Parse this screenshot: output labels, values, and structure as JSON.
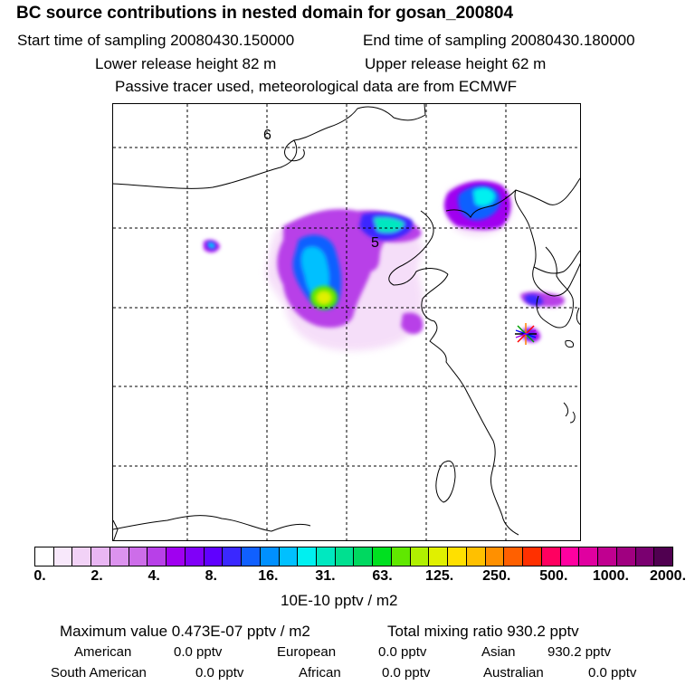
{
  "header": {
    "title": "BC  source contributions in nested domain for gosan_200804",
    "start_time": "Start time of sampling 20080430.150000",
    "end_time": "End time of sampling 20080430.180000",
    "lower_height": "Lower release height   82 m",
    "upper_height": "Upper release height   62 m",
    "tracer_note": "Passive tracer used, meteorological data are from ECMWF"
  },
  "map": {
    "grid_labels": [
      "6",
      "5"
    ],
    "receptor_marker": "star-marker"
  },
  "colorbar": {
    "colors": [
      "#ffffff",
      "#f8e8fb",
      "#f2d2f7",
      "#e9b6f3",
      "#dc93ee",
      "#cd6de9",
      "#b840e8",
      "#a000f0",
      "#8000f8",
      "#6000ff",
      "#3a28ff",
      "#1060ff",
      "#0090ff",
      "#00c0ff",
      "#00f0f0",
      "#00e8c0",
      "#00e090",
      "#00d860",
      "#00e020",
      "#60e800",
      "#b0f000",
      "#e0f000",
      "#ffe000",
      "#ffc000",
      "#ff9000",
      "#ff6000",
      "#ff3000",
      "#ff0060",
      "#ff00a0",
      "#e000a0",
      "#c00090",
      "#a00080",
      "#7a0070",
      "#500050"
    ],
    "tick_labels": [
      "0.",
      "2.",
      "4.",
      "8.",
      "16.",
      "31.",
      "63.",
      "125.",
      "250.",
      "500.",
      "1000.",
      "2000."
    ],
    "units": "10E-10 pptv / m2"
  },
  "stats": {
    "max_value": "Maximum value  0.473E-07 pptv / m2",
    "total_mixing": "Total mixing ratio     930.2 pptv",
    "sources": [
      {
        "label": "American",
        "value": "0.0 pptv"
      },
      {
        "label": "European",
        "value": "0.0 pptv"
      },
      {
        "label": "Asian",
        "value": "930.2 pptv"
      },
      {
        "label": "South American",
        "value": "0.0 pptv"
      },
      {
        "label": "African",
        "value": "0.0 pptv"
      },
      {
        "label": "Australian",
        "value": "0.0 pptv"
      }
    ]
  }
}
